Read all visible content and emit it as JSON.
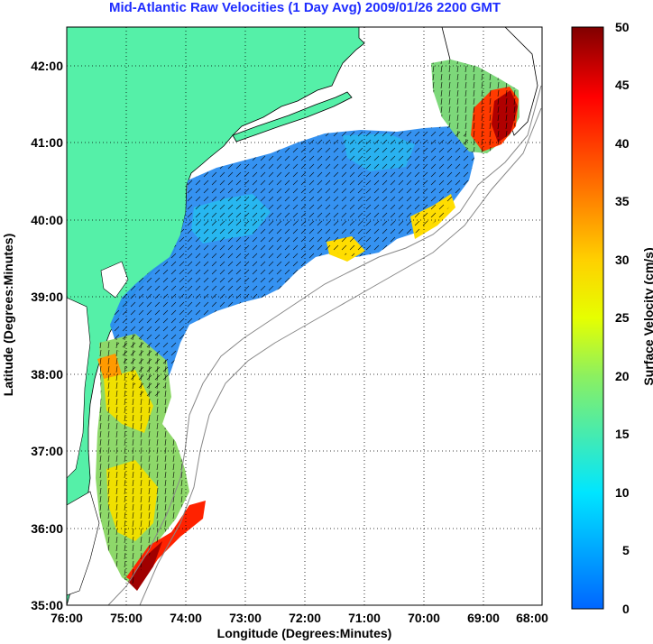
{
  "title": "Mid-Atlantic Raw Velocities (1 Day Avg) 2009/01/26 2200 GMT",
  "xlabel": "Longitude (Degrees:Minutes)",
  "ylabel": "Latitude (Degrees:Minutes)",
  "colorbar_label": "Surface Velocity (cm/s)",
  "x_ticks": [
    "76:00",
    "75:00",
    "74:00",
    "73:00",
    "72:00",
    "71:00",
    "70:00",
    "69:00",
    "68:00"
  ],
  "y_ticks": [
    "42:00",
    "41:00",
    "40:00",
    "39:00",
    "38:00",
    "37:00",
    "36:00",
    "35:00"
  ],
  "colorbar_ticks": [
    "50",
    "45",
    "40",
    "35",
    "30",
    "25",
    "20",
    "15",
    "10",
    "5",
    "0"
  ],
  "colors": {
    "land": "#55f0a8",
    "title": "#1e2cff",
    "ocean_blank": "#ffffff",
    "grid": "#000000",
    "bathymetry": "#888888"
  },
  "chart_data": {
    "type": "heatmap",
    "title": "Mid-Atlantic Raw Velocities (1 Day Avg) 2009/01/26 2200 GMT",
    "xlabel": "Longitude (Degrees:Minutes)",
    "ylabel": "Latitude (Degrees:Minutes)",
    "xlim": [
      -76,
      -68
    ],
    "ylim": [
      35,
      42.5
    ],
    "colorbar": {
      "label": "Surface Velocity (cm/s)",
      "range": [
        0,
        50
      ],
      "colormap": "jet"
    },
    "grid": true
  }
}
